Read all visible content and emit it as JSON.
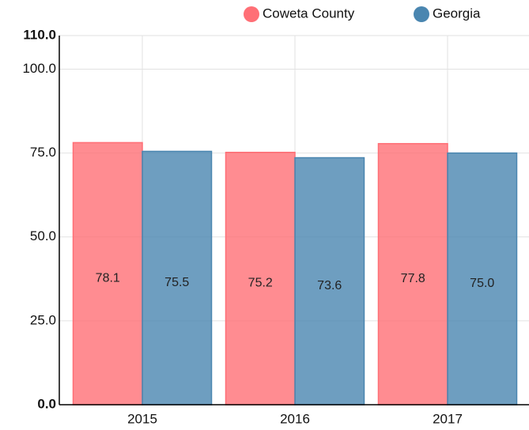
{
  "chart_data": {
    "type": "bar",
    "categories": [
      "2015",
      "2016",
      "2017"
    ],
    "series": [
      {
        "name": "Coweta County",
        "color": "#ff6f76",
        "values": [
          78.1,
          75.2,
          77.8
        ],
        "value_labels": [
          "78.1",
          "75.2",
          "77.8"
        ]
      },
      {
        "name": "Georgia",
        "color": "#4a86b0",
        "values": [
          75.5,
          73.6,
          75.0
        ],
        "value_labels": [
          "75.5",
          "73.6",
          "75.0"
        ]
      }
    ],
    "ylim": [
      0,
      110
    ],
    "yticks": [
      {
        "value": 0,
        "label": "0.0"
      },
      {
        "value": 25,
        "label": "25.0"
      },
      {
        "value": 50,
        "label": "50.0"
      },
      {
        "value": 75,
        "label": "75.0"
      },
      {
        "value": 100,
        "label": "100.0"
      },
      {
        "value": 110,
        "label": "110.0"
      }
    ],
    "grid": true,
    "legend": "top"
  }
}
